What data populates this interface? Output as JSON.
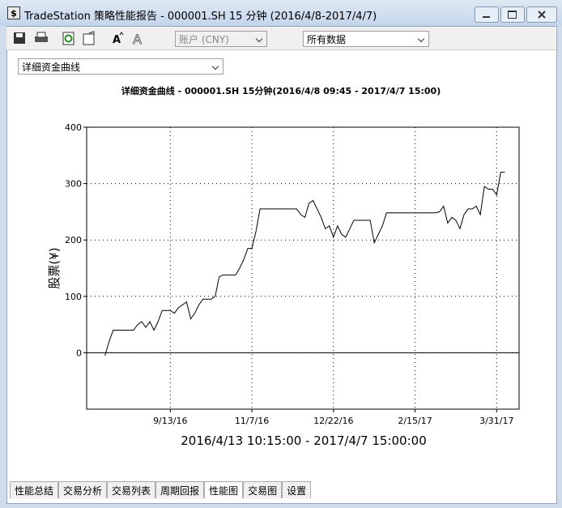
{
  "window": {
    "title": "TradeStation 策略性能报告 - 000001.SH 15 分钟 (2016/4/8-2017/4/7)"
  },
  "toolbar": {
    "account_select": "账户 (CNY)",
    "data_select": "所有数据"
  },
  "view_select": "详细资金曲线",
  "chart_data": {
    "type": "line",
    "title": "详细资金曲线 - 000001.SH 15分钟(2016/4/8 09:45 - 2017/4/7 15:00)",
    "y_label": "股票(¥)",
    "x_label": "2016/4/13 10:15:00 - 2017/4/7 15:00:00",
    "categories": [
      null,
      null,
      null,
      null,
      null,
      null,
      null,
      null,
      null,
      null,
      null,
      null,
      null,
      null,
      null,
      null,
      null,
      null,
      null,
      null,
      "9/13/16",
      null,
      null,
      null,
      null,
      null,
      null,
      null,
      null,
      null,
      null,
      null,
      null,
      null,
      null,
      null,
      null,
      null,
      null,
      null,
      "11/7/16",
      null,
      null,
      null,
      null,
      null,
      null,
      null,
      null,
      null,
      null,
      null,
      null,
      null,
      null,
      null,
      null,
      null,
      null,
      null,
      "12/22/16",
      null,
      null,
      null,
      null,
      null,
      null,
      null,
      null,
      null,
      null,
      null,
      null,
      null,
      null,
      null,
      null,
      null,
      null,
      null,
      "2/15/17",
      null,
      null,
      null,
      null,
      null,
      null,
      null,
      null,
      null,
      null,
      null,
      null,
      null,
      null,
      null,
      null,
      null,
      null,
      null,
      "3/31/17",
      null,
      null,
      null,
      null,
      null
    ],
    "values": [
      null,
      null,
      null,
      null,
      -5,
      20,
      40,
      40,
      40,
      40,
      40,
      40,
      50,
      55,
      45,
      55,
      40,
      55,
      75,
      75,
      75,
      70,
      80,
      85,
      90,
      60,
      70,
      85,
      95,
      95,
      95,
      100,
      135,
      138,
      138,
      138,
      138,
      150,
      165,
      185,
      185,
      215,
      255,
      255,
      255,
      255,
      255,
      255,
      255,
      255,
      255,
      255,
      245,
      240,
      265,
      270,
      255,
      240,
      220,
      225,
      205,
      225,
      210,
      205,
      220,
      235,
      235,
      235,
      235,
      235,
      195,
      210,
      225,
      248,
      248,
      248,
      248,
      248,
      248,
      248,
      248,
      248,
      248,
      248,
      248,
      248,
      250,
      260,
      230,
      240,
      235,
      220,
      245,
      255,
      255,
      260,
      245,
      295,
      290,
      290,
      280,
      320,
      320,
      null,
      null,
      null
    ],
    "color": "#000000",
    "ylim": [
      -100,
      400
    ],
    "yticks": [
      0,
      100,
      200,
      300,
      400
    ],
    "grid": true
  },
  "tabs": [
    "性能总结",
    "交易分析",
    "交易列表",
    "周期回报",
    "性能图",
    "交易图",
    "设置"
  ],
  "selected_tab": 4
}
